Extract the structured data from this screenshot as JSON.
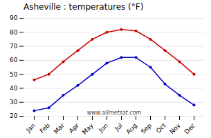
{
  "chart_data": {
    "type": "line",
    "title": "Asheville : temperatures (°F)",
    "categories": [
      "Jan",
      "Feb",
      "Mar",
      "Apr",
      "May",
      "Jun",
      "Jul",
      "Aug",
      "Sep",
      "Oct",
      "Nov",
      "Dec"
    ],
    "series": [
      {
        "color": "#cc0000",
        "values": [
          46,
          50,
          59,
          67,
          75,
          80,
          82,
          81,
          75,
          67,
          59,
          50
        ]
      },
      {
        "color": "#0000cc",
        "values": [
          24,
          26,
          35,
          42,
          50,
          58,
          62,
          62,
          55,
          43,
          35,
          28
        ]
      }
    ],
    "ylim": [
      20,
      90
    ],
    "yticks": [
      20,
      30,
      40,
      50,
      60,
      70,
      80,
      90
    ],
    "grid": true,
    "marker": "circle",
    "annotations": [
      "www.allmetsat.com"
    ]
  }
}
